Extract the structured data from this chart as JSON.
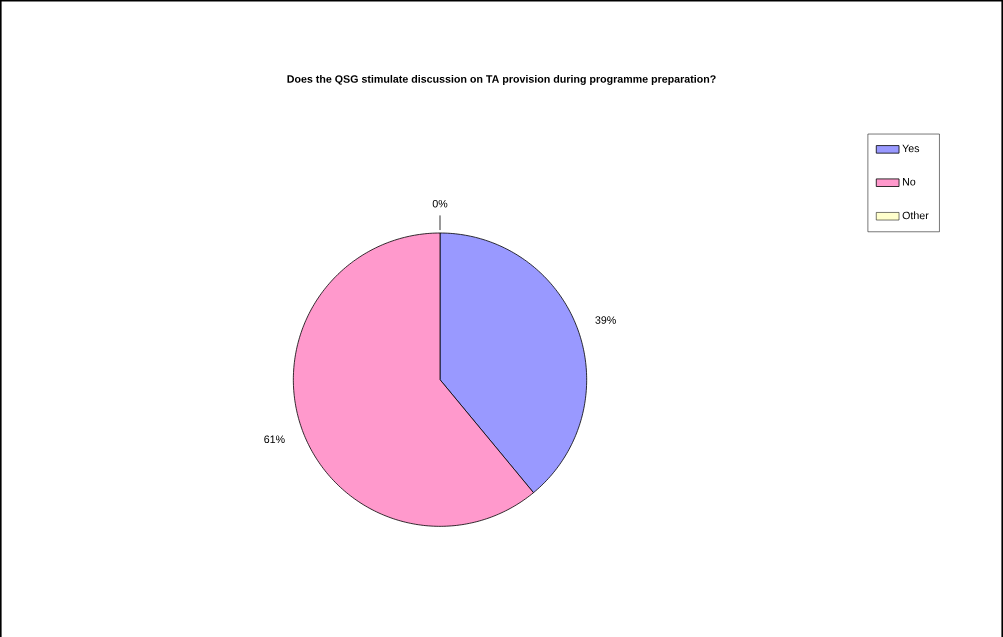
{
  "chart_data": {
    "type": "pie",
    "title": "Does the QSG stimulate discussion on TA provision during programme preparation?",
    "categories": [
      "Yes",
      "No",
      "Other"
    ],
    "values": [
      39,
      61,
      0
    ],
    "colors": [
      "#9999ff",
      "#ff99cc",
      "#ffffcc"
    ],
    "value_labels": [
      "39%",
      "61%",
      "0%"
    ],
    "legend": "right"
  }
}
